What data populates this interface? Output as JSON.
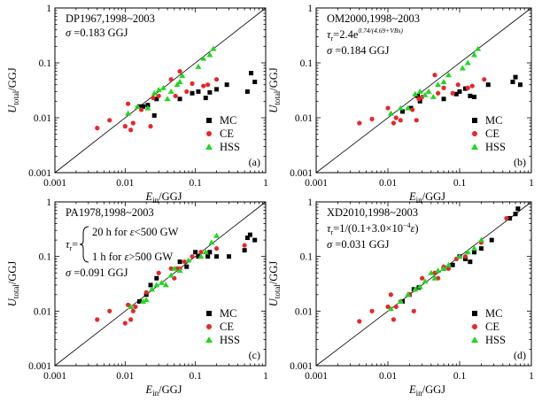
{
  "chart_data": [
    {
      "panel": "a",
      "type": "scatter",
      "scale": "log-log",
      "xlim": [
        0.001,
        1
      ],
      "ylim": [
        0.001,
        1
      ],
      "xticks": [
        "0.001",
        "0.01",
        "0.1",
        "1"
      ],
      "yticks": [
        "0.001",
        "0.01",
        "0.1",
        "1"
      ],
      "xlabel_main": "E",
      "xlabel_sub": "in",
      "xlabel_unit": "/GGJ",
      "ylabel_main": "U",
      "ylabel_sub": "total",
      "ylabel_unit": "/GGJ",
      "annotation_lines": [
        "DP1967,1998~2003",
        "σ =0.183 GGJ"
      ],
      "panel_label": "(a)",
      "legend": [
        "MC",
        "CE",
        "HSS"
      ],
      "diagonal": true,
      "series": [
        {
          "name": "MC",
          "points": [
            [
              0.016,
              0.016
            ],
            [
              0.018,
              0.016
            ],
            [
              0.021,
              0.017
            ],
            [
              0.026,
              0.011
            ],
            [
              0.028,
              0.022
            ],
            [
              0.06,
              0.022
            ],
            [
              0.09,
              0.028
            ],
            [
              0.11,
              0.03
            ],
            [
              0.14,
              0.023
            ],
            [
              0.16,
              0.029
            ],
            [
              0.2,
              0.033
            ],
            [
              0.28,
              0.04
            ],
            [
              0.55,
              0.03
            ],
            [
              0.62,
              0.065
            ],
            [
              0.7,
              0.045
            ]
          ]
        },
        {
          "name": "CE",
          "points": [
            [
              0.004,
              0.0065
            ],
            [
              0.006,
              0.009
            ],
            [
              0.01,
              0.007
            ],
            [
              0.011,
              0.018
            ],
            [
              0.012,
              0.006
            ],
            [
              0.013,
              0.008
            ],
            [
              0.017,
              0.014
            ],
            [
              0.023,
              0.007
            ],
            [
              0.025,
              0.023
            ],
            [
              0.03,
              0.025
            ],
            [
              0.045,
              0.05
            ],
            [
              0.052,
              0.025
            ],
            [
              0.06,
              0.07
            ],
            [
              0.075,
              0.03
            ],
            [
              0.09,
              0.042
            ],
            [
              0.13,
              0.038
            ],
            [
              0.15,
              0.04
            ],
            [
              0.2,
              0.05
            ]
          ]
        },
        {
          "name": "HSS",
          "points": [
            [
              0.011,
              0.012
            ],
            [
              0.015,
              0.016
            ],
            [
              0.021,
              0.015
            ],
            [
              0.026,
              0.028
            ],
            [
              0.03,
              0.032
            ],
            [
              0.035,
              0.035
            ],
            [
              0.04,
              0.022
            ],
            [
              0.045,
              0.03
            ],
            [
              0.055,
              0.04
            ],
            [
              0.06,
              0.045
            ],
            [
              0.065,
              0.058
            ],
            [
              0.11,
              0.085
            ],
            [
              0.13,
              0.12
            ],
            [
              0.16,
              0.14
            ],
            [
              0.18,
              0.18
            ]
          ]
        }
      ]
    },
    {
      "panel": "b",
      "type": "scatter",
      "scale": "log-log",
      "xlim": [
        0.001,
        1
      ],
      "ylim": [
        0.001,
        1
      ],
      "xticks": [
        "0.001",
        "0.01",
        "0.1",
        "1"
      ],
      "yticks": [
        "0.001",
        "0.01",
        "0.1",
        "1"
      ],
      "xlabel_main": "E",
      "xlabel_sub": "in",
      "xlabel_unit": "/GGJ",
      "ylabel_main": "U",
      "ylabel_sub": "total",
      "ylabel_unit": "/GGJ",
      "annotation_lines": [
        "OM2000,1998~2003",
        "τr=2.4e",
        "0.74/(4.69+VBs)",
        "σ =0.184 GGJ"
      ],
      "panel_label": "(b)",
      "legend": [
        "MC",
        "CE",
        "HSS"
      ],
      "diagonal": true,
      "series": [
        {
          "name": "MC",
          "points": [
            [
              0.016,
              0.013
            ],
            [
              0.021,
              0.015
            ],
            [
              0.026,
              0.025
            ],
            [
              0.028,
              0.02
            ],
            [
              0.06,
              0.022
            ],
            [
              0.09,
              0.027
            ],
            [
              0.1,
              0.03
            ],
            [
              0.12,
              0.034
            ],
            [
              0.14,
              0.025
            ],
            [
              0.16,
              0.024
            ],
            [
              0.25,
              0.04
            ],
            [
              0.55,
              0.045
            ],
            [
              0.6,
              0.055
            ],
            [
              0.7,
              0.04
            ]
          ]
        },
        {
          "name": "CE",
          "points": [
            [
              0.004,
              0.008
            ],
            [
              0.006,
              0.0095
            ],
            [
              0.01,
              0.015
            ],
            [
              0.012,
              0.008
            ],
            [
              0.013,
              0.01
            ],
            [
              0.015,
              0.009
            ],
            [
              0.022,
              0.014
            ],
            [
              0.025,
              0.009
            ],
            [
              0.027,
              0.022
            ],
            [
              0.03,
              0.024
            ],
            [
              0.045,
              0.06
            ],
            [
              0.05,
              0.028
            ],
            [
              0.06,
              0.035
            ],
            [
              0.08,
              0.028
            ],
            [
              0.095,
              0.04
            ],
            [
              0.13,
              0.035
            ],
            [
              0.15,
              0.038
            ],
            [
              0.22,
              0.05
            ]
          ]
        },
        {
          "name": "HSS",
          "points": [
            [
              0.011,
              0.012
            ],
            [
              0.015,
              0.015
            ],
            [
              0.019,
              0.015
            ],
            [
              0.024,
              0.027
            ],
            [
              0.028,
              0.03
            ],
            [
              0.033,
              0.026
            ],
            [
              0.037,
              0.03
            ],
            [
              0.043,
              0.024
            ],
            [
              0.05,
              0.04
            ],
            [
              0.06,
              0.045
            ],
            [
              0.07,
              0.06
            ],
            [
              0.11,
              0.08
            ],
            [
              0.13,
              0.1
            ],
            [
              0.16,
              0.14
            ],
            [
              0.18,
              0.18
            ]
          ]
        }
      ]
    },
    {
      "panel": "c",
      "type": "scatter",
      "scale": "log-log",
      "xlim": [
        0.001,
        1
      ],
      "ylim": [
        0.001,
        1
      ],
      "xticks": [
        "0.001",
        "0.01",
        "0.1",
        "1"
      ],
      "yticks": [
        "0.001",
        "0.01",
        "0.1",
        "1"
      ],
      "xlabel_main": "E",
      "xlabel_sub": "in",
      "xlabel_unit": "/GGJ",
      "ylabel_main": "U",
      "ylabel_sub": "total",
      "ylabel_unit": "/GGJ",
      "annotation_lines": [
        "PA1978,1998~2003",
        "τr=",
        "20 h for ε<500 GW",
        "1 h for ε>500 GW",
        "σ =0.091 GGJ"
      ],
      "panel_label": "(c)",
      "legend": [
        "MC",
        "CE",
        "HSS"
      ],
      "diagonal": true,
      "series": [
        {
          "name": "MC",
          "points": [
            [
              0.016,
              0.015
            ],
            [
              0.02,
              0.02
            ],
            [
              0.023,
              0.03
            ],
            [
              0.028,
              0.04
            ],
            [
              0.06,
              0.08
            ],
            [
              0.075,
              0.065
            ],
            [
              0.1,
              0.12
            ],
            [
              0.11,
              0.1
            ],
            [
              0.15,
              0.1
            ],
            [
              0.16,
              0.12
            ],
            [
              0.2,
              0.1
            ],
            [
              0.3,
              0.1
            ],
            [
              0.5,
              0.13
            ],
            [
              0.55,
              0.22
            ],
            [
              0.6,
              0.25
            ],
            [
              0.7,
              0.2
            ]
          ]
        },
        {
          "name": "CE",
          "points": [
            [
              0.004,
              0.007
            ],
            [
              0.006,
              0.01
            ],
            [
              0.01,
              0.006
            ],
            [
              0.011,
              0.013
            ],
            [
              0.012,
              0.007
            ],
            [
              0.013,
              0.01
            ],
            [
              0.014,
              0.012
            ],
            [
              0.02,
              0.022
            ],
            [
              0.03,
              0.05
            ],
            [
              0.045,
              0.06
            ],
            [
              0.05,
              0.04
            ],
            [
              0.055,
              0.06
            ],
            [
              0.06,
              0.06
            ],
            [
              0.07,
              0.08
            ],
            [
              0.09,
              0.1
            ],
            [
              0.12,
              0.12
            ],
            [
              0.2,
              0.14
            ],
            [
              0.5,
              0.16
            ]
          ]
        },
        {
          "name": "HSS",
          "points": [
            [
              0.012,
              0.012
            ],
            [
              0.018,
              0.015
            ],
            [
              0.02,
              0.016
            ],
            [
              0.024,
              0.025
            ],
            [
              0.028,
              0.03
            ],
            [
              0.033,
              0.033
            ],
            [
              0.038,
              0.03
            ],
            [
              0.045,
              0.045
            ],
            [
              0.05,
              0.06
            ],
            [
              0.06,
              0.055
            ],
            [
              0.08,
              0.085
            ],
            [
              0.12,
              0.1
            ],
            [
              0.14,
              0.12
            ],
            [
              0.17,
              0.18
            ],
            [
              0.2,
              0.24
            ]
          ]
        }
      ]
    },
    {
      "panel": "d",
      "type": "scatter",
      "scale": "log-log",
      "xlim": [
        0.001,
        1
      ],
      "ylim": [
        0.001,
        1
      ],
      "xticks": [
        "0.001",
        "0.01",
        "0.1",
        "1"
      ],
      "yticks": [
        "0.001",
        "0.01",
        "0.1",
        "1"
      ],
      "xlabel_main": "E",
      "xlabel_sub": "in",
      "xlabel_unit": "/GGJ",
      "ylabel_main": "U",
      "ylabel_sub": "total",
      "ylabel_unit": "/GGJ",
      "annotation_lines": [
        "XD2010,1998~2003",
        "τr=1/(0.1+3.0×10",
        "−4",
        "ε)",
        "σ =0.031 GGJ"
      ],
      "panel_label": "(d)",
      "legend": [
        "MC",
        "CE",
        "HSS"
      ],
      "diagonal": true,
      "series": [
        {
          "name": "MC",
          "points": [
            [
              0.016,
              0.015
            ],
            [
              0.02,
              0.02
            ],
            [
              0.023,
              0.025
            ],
            [
              0.027,
              0.027
            ],
            [
              0.06,
              0.06
            ],
            [
              0.08,
              0.07
            ],
            [
              0.1,
              0.1
            ],
            [
              0.12,
              0.09
            ],
            [
              0.14,
              0.08
            ],
            [
              0.16,
              0.12
            ],
            [
              0.2,
              0.14
            ],
            [
              0.28,
              0.2
            ],
            [
              0.5,
              0.5
            ],
            [
              0.6,
              0.6
            ],
            [
              0.65,
              0.75
            ]
          ]
        },
        {
          "name": "CE",
          "points": [
            [
              0.004,
              0.0065
            ],
            [
              0.006,
              0.01
            ],
            [
              0.01,
              0.012
            ],
            [
              0.011,
              0.02
            ],
            [
              0.012,
              0.007
            ],
            [
              0.013,
              0.012
            ],
            [
              0.015,
              0.015
            ],
            [
              0.02,
              0.02
            ],
            [
              0.023,
              0.01
            ],
            [
              0.03,
              0.04
            ],
            [
              0.045,
              0.05
            ],
            [
              0.05,
              0.04
            ],
            [
              0.06,
              0.065
            ],
            [
              0.07,
              0.06
            ],
            [
              0.09,
              0.09
            ],
            [
              0.12,
              0.1
            ],
            [
              0.2,
              0.18
            ],
            [
              0.45,
              0.5
            ]
          ]
        },
        {
          "name": "HSS",
          "points": [
            [
              0.011,
              0.011
            ],
            [
              0.015,
              0.015
            ],
            [
              0.019,
              0.02
            ],
            [
              0.024,
              0.025
            ],
            [
              0.028,
              0.028
            ],
            [
              0.033,
              0.035
            ],
            [
              0.04,
              0.05
            ],
            [
              0.045,
              0.04
            ],
            [
              0.05,
              0.055
            ],
            [
              0.06,
              0.06
            ],
            [
              0.07,
              0.07
            ],
            [
              0.1,
              0.1
            ],
            [
              0.13,
              0.12
            ],
            [
              0.16,
              0.14
            ],
            [
              0.2,
              0.2
            ]
          ]
        }
      ]
    }
  ]
}
